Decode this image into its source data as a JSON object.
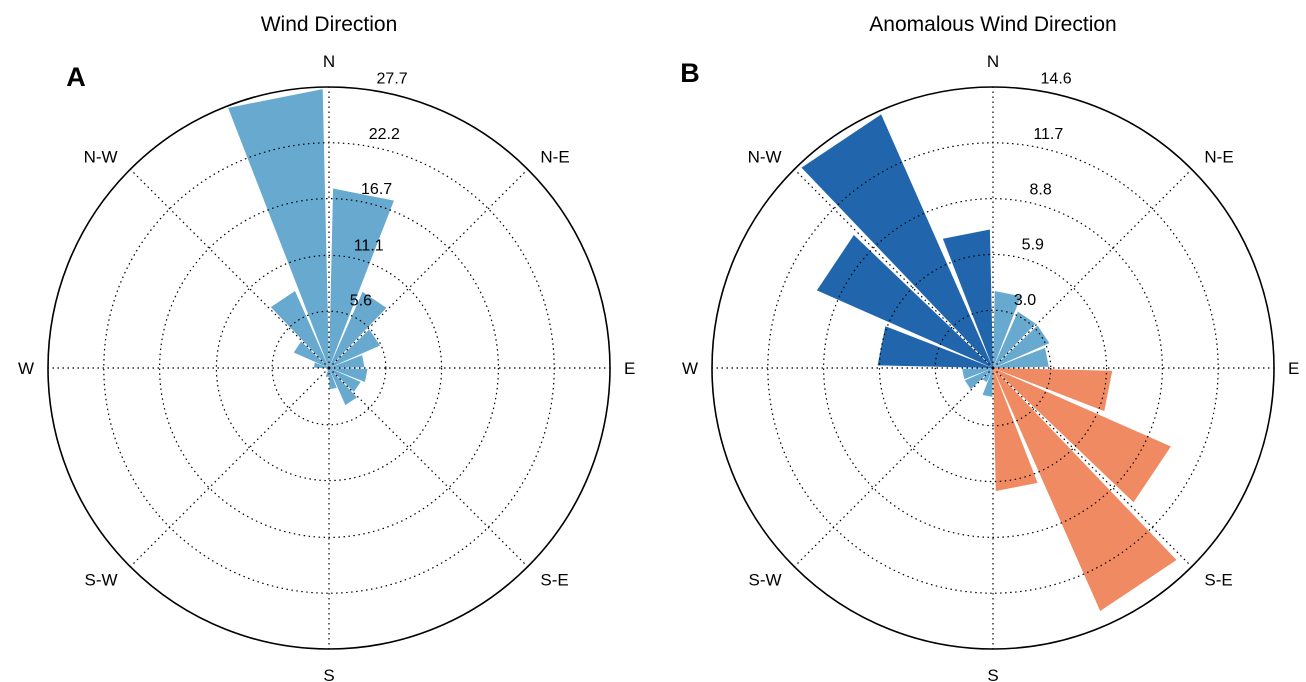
{
  "chart_data": [
    {
      "type": "polar-bar",
      "panel_label": "A",
      "title": "Wind Direction",
      "direction_labels": [
        "N",
        "N-E",
        "E",
        "S-E",
        "S",
        "S-W",
        "W",
        "N-W"
      ],
      "ring_values": [
        5.6,
        11.1,
        16.7,
        22.2,
        27.7
      ],
      "ring_labels": [
        "5.6",
        "11.1",
        "16.7",
        "22.2",
        "27.7"
      ],
      "r_max": 27.7,
      "grid": true,
      "sectors": 16,
      "values": [
        17.7,
        8.2,
        5.5,
        3.5,
        3.8,
        3.4,
        4.0,
        2.1,
        0.9,
        0.3,
        0.2,
        0.3,
        1.5,
        3.8,
        8.3,
        27.5
      ],
      "colors": [
        "#67a9cf",
        "#67a9cf",
        "#67a9cf",
        "#67a9cf",
        "#67a9cf",
        "#67a9cf",
        "#67a9cf",
        "#67a9cf",
        "#67a9cf",
        "#67a9cf",
        "#67a9cf",
        "#67a9cf",
        "#67a9cf",
        "#67a9cf",
        "#67a9cf",
        "#67a9cf"
      ]
    },
    {
      "type": "polar-bar",
      "panel_label": "B",
      "title": "Anomalous Wind Direction",
      "direction_labels": [
        "N",
        "N-E",
        "E",
        "S-E",
        "S",
        "S-W",
        "W",
        "N-W"
      ],
      "ring_values": [
        3.0,
        5.9,
        8.8,
        11.7,
        14.6
      ],
      "ring_labels": [
        "3.0",
        "5.9",
        "8.8",
        "11.7",
        "14.6"
      ],
      "r_max": 14.6,
      "grid": true,
      "sectors": 16,
      "values": [
        4.0,
        3.2,
        3.2,
        2.9,
        6.2,
        10.1,
        13.8,
        6.4,
        1.5,
        0.8,
        1.6,
        1.6,
        6.0,
        10.0,
        14.4,
        7.2
      ],
      "colors": [
        "#67a9cf",
        "#67a9cf",
        "#67a9cf",
        "#67a9cf",
        "#ef8a62",
        "#ef8a62",
        "#ef8a62",
        "#ef8a62",
        "#67a9cf",
        "#67a9cf",
        "#67a9cf",
        "#67a9cf",
        "#2166ac",
        "#2166ac",
        "#2166ac",
        "#2166ac"
      ]
    }
  ],
  "colors": {
    "light_blue": "#67a9cf",
    "dark_blue": "#2166ac",
    "salmon": "#ef8a62"
  }
}
